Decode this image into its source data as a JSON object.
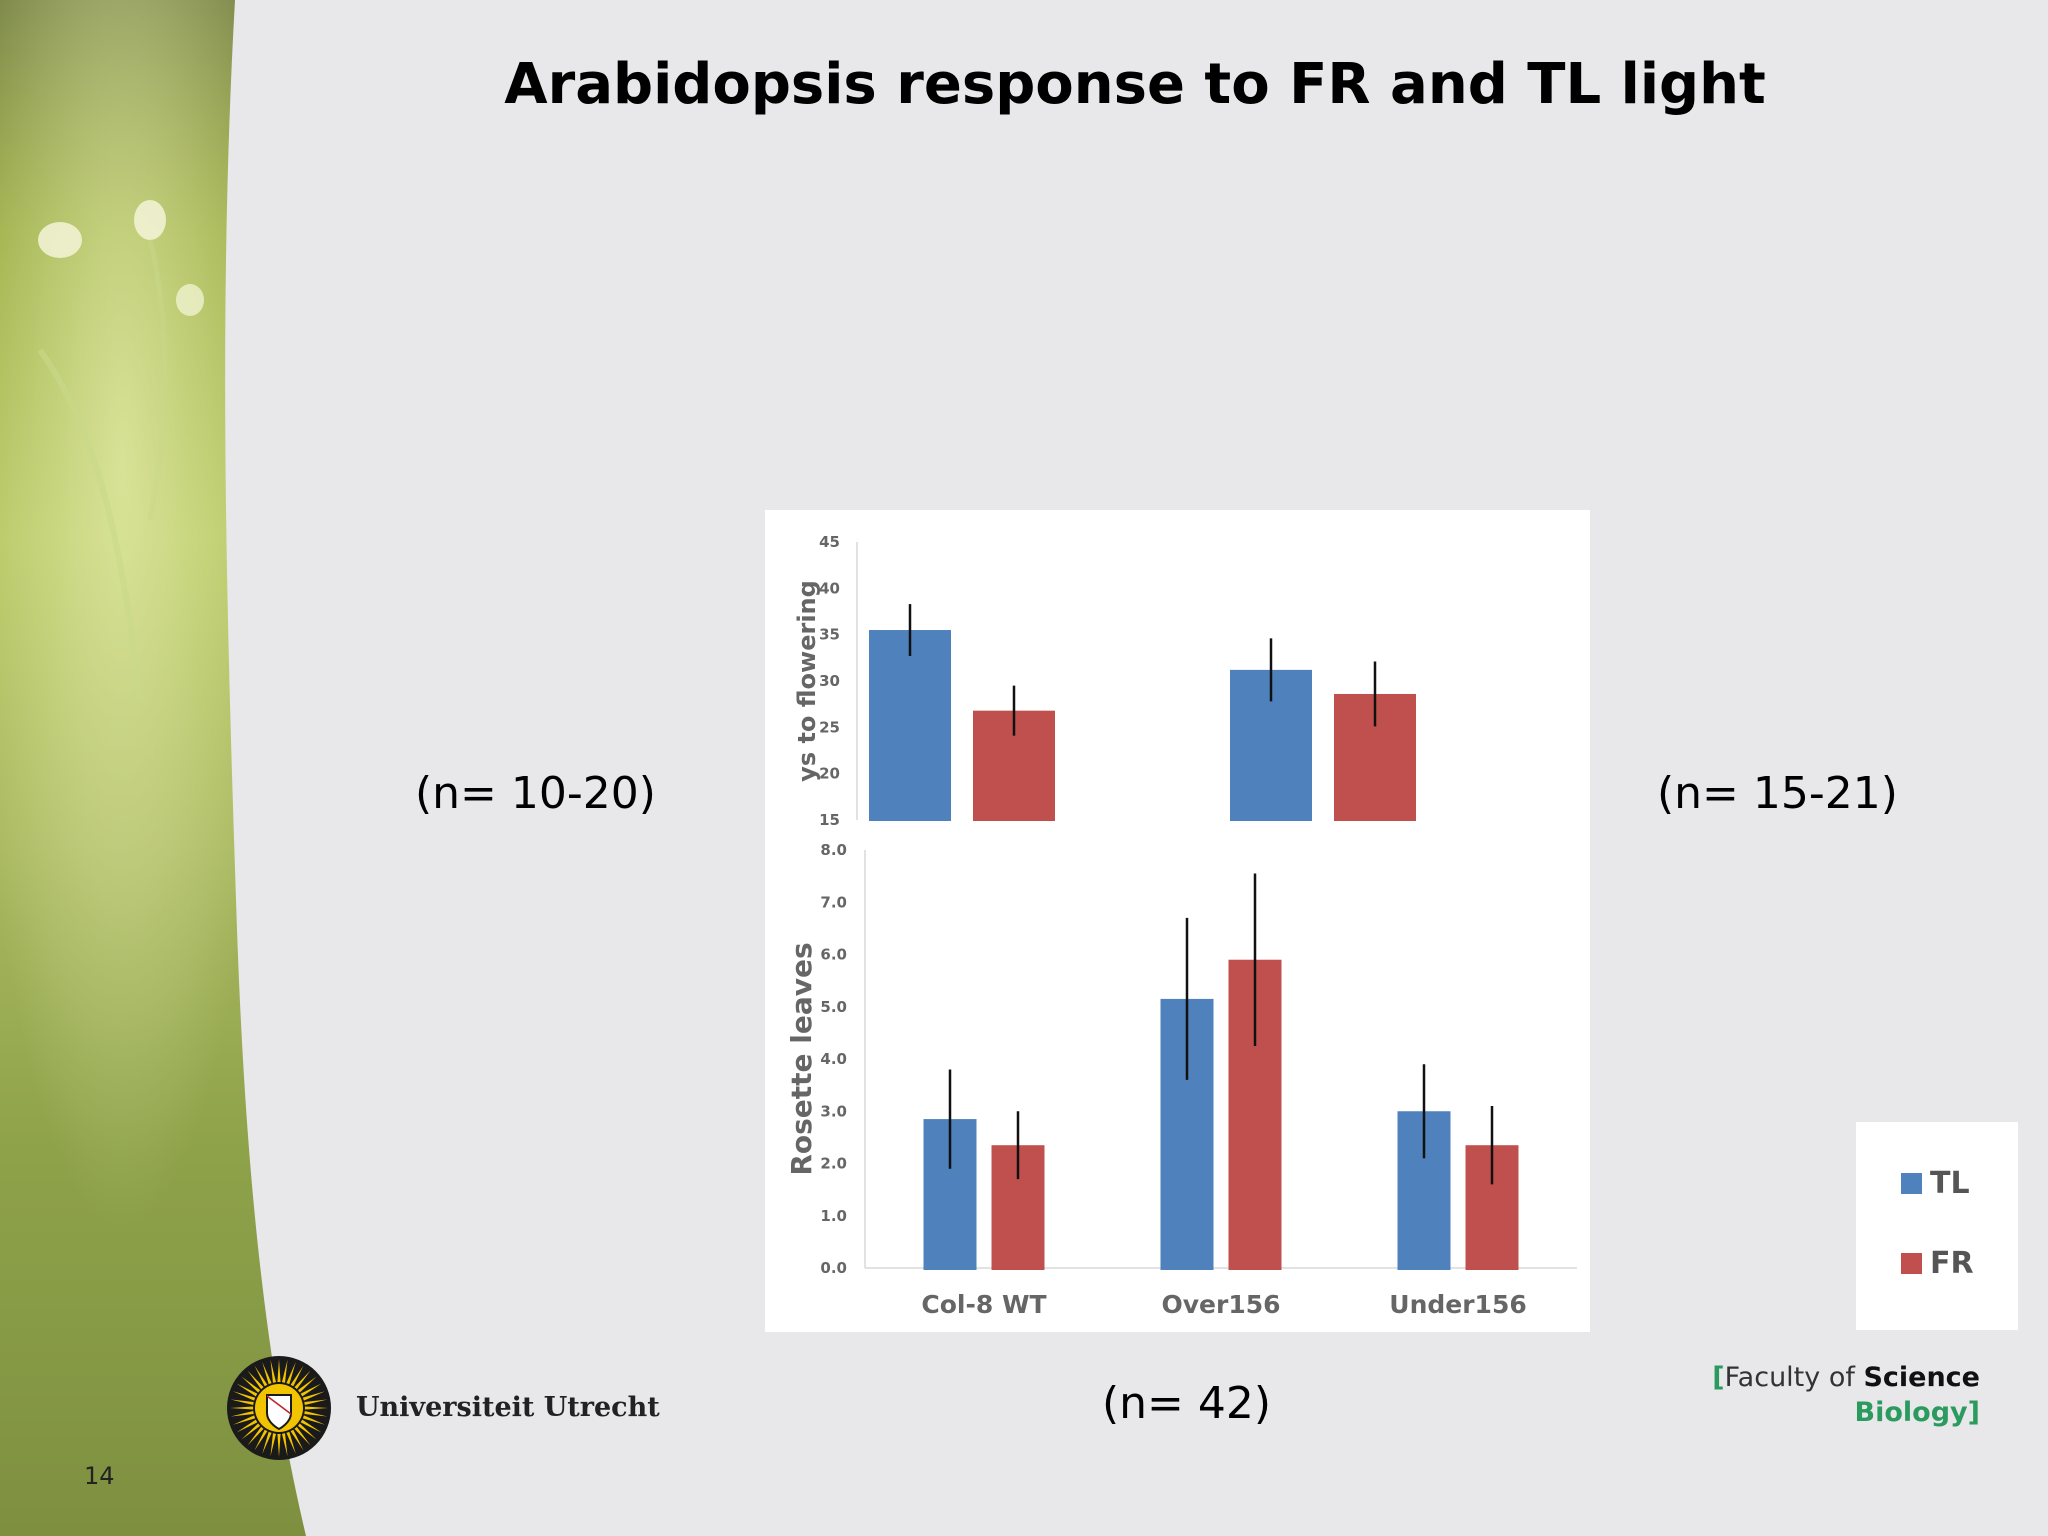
{
  "slide": {
    "title": "Arabidopsis response to FR and TL light",
    "number": "14",
    "n_left": "(n= 10-20)",
    "n_right": "(n= 15-21)",
    "n_bottom": "(n= 42)",
    "university": "Universiteit Utrecht",
    "faculty_bracket_open": "[",
    "faculty_text": "Faculty of ",
    "faculty_science": "Science",
    "department": "Biology",
    "faculty_bracket_close": "]"
  },
  "legend": {
    "items": [
      {
        "label": "TL",
        "color": "#4f81bd"
      },
      {
        "label": "FR",
        "color": "#c0504d"
      }
    ]
  },
  "chart_data": [
    {
      "type": "bar",
      "ylabel": "ys to flowering",
      "categories": [
        "Col-8 WT",
        "Over156",
        "Under156"
      ],
      "ylim": [
        15,
        45
      ],
      "yticks": [
        "15",
        "20",
        "25",
        "30",
        "35",
        "40",
        "45"
      ],
      "series": [
        {
          "name": "TL",
          "color": "#4f81bd",
          "values": [
            35.5,
            null,
            31.2
          ],
          "errors": [
            2.8,
            null,
            3.4
          ]
        },
        {
          "name": "FR",
          "color": "#c0504d",
          "values": [
            26.8,
            null,
            28.6
          ],
          "errors": [
            2.7,
            null,
            3.5
          ]
        }
      ],
      "grid": false,
      "cropped": true
    },
    {
      "type": "bar",
      "ylabel": "Rosette leaves",
      "categories": [
        "Col-8 WT",
        "Over156",
        "Under156"
      ],
      "ylim": [
        0,
        8
      ],
      "yticks": [
        "0.0",
        "1.0",
        "2.0",
        "3.0",
        "4.0",
        "5.0",
        "6.0",
        "7.0",
        "8.0"
      ],
      "series": [
        {
          "name": "TL",
          "color": "#4f81bd",
          "values": [
            2.85,
            5.15,
            3.0
          ],
          "errors": [
            0.95,
            1.55,
            0.9
          ]
        },
        {
          "name": "FR",
          "color": "#c0504d",
          "values": [
            2.35,
            5.9,
            2.35
          ],
          "errors": [
            0.65,
            1.65,
            0.75
          ]
        }
      ],
      "grid": false
    }
  ]
}
